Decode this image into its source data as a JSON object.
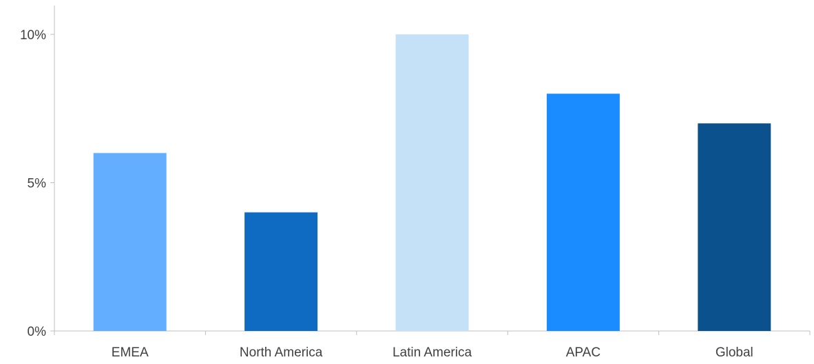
{
  "chart_data": {
    "type": "bar",
    "categories": [
      "EMEA",
      "North America",
      "Latin America",
      "APAC",
      "Global"
    ],
    "values": [
      6,
      4,
      10,
      8,
      7
    ],
    "colors": [
      "#63aeff",
      "#0f6ac2",
      "#c5e1f8",
      "#1a8cff",
      "#0b518e"
    ],
    "y_ticks": [
      0,
      5,
      10
    ],
    "y_tick_labels": [
      "0%",
      "5%",
      "10%"
    ],
    "ylim": [
      0,
      10
    ],
    "unit": "%",
    "grid": false,
    "legend": false
  }
}
